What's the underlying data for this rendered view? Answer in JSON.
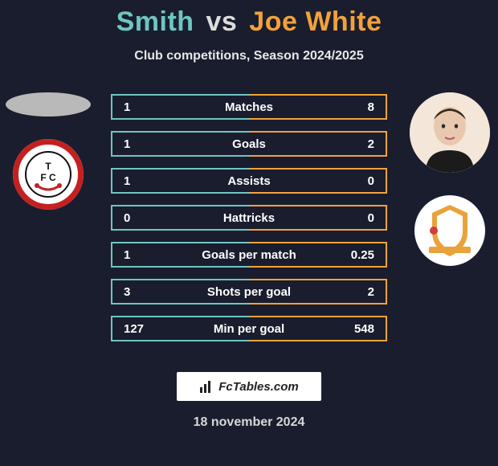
{
  "title": {
    "player1": "Smith",
    "player1_color": "#6dc6c1",
    "vs": "vs",
    "vs_color": "#dcdcdc",
    "player2": "Joe White",
    "player2_color": "#f2a23a",
    "fontsize": 34
  },
  "subtitle": {
    "text": "Club competitions, Season 2024/2025",
    "color": "#e8e8e8",
    "fontsize": 16
  },
  "background_color": "#1a1d2e",
  "players": {
    "left": {
      "club_bg": "#ffffff",
      "club_ring": "#c42020",
      "club_text": "TFC",
      "club_text_color": "#111111"
    },
    "right": {
      "avatar_bg": "#f4e6d8",
      "club_bg": "#ffffff",
      "club_shield_outer": "#e9a23b",
      "club_shield_inner": "#ffffff",
      "club_dot": "#d23c3c"
    }
  },
  "rows": {
    "border_color_left": "#6dc6c1",
    "border_color_right": "#f2a23a",
    "text_color": "#ffffff",
    "fontsize": 15,
    "items": [
      {
        "left": "1",
        "label": "Matches",
        "right": "8"
      },
      {
        "left": "1",
        "label": "Goals",
        "right": "2"
      },
      {
        "left": "1",
        "label": "Assists",
        "right": "0"
      },
      {
        "left": "0",
        "label": "Hattricks",
        "right": "0"
      },
      {
        "left": "1",
        "label": "Goals per match",
        "right": "0.25"
      },
      {
        "left": "3",
        "label": "Shots per goal",
        "right": "2"
      },
      {
        "left": "127",
        "label": "Min per goal",
        "right": "548"
      }
    ]
  },
  "footer": {
    "brand": "FcTables.com",
    "brand_fontsize": 15,
    "date": "18 november 2024",
    "date_color": "#d8d8d8",
    "date_fontsize": 16
  }
}
